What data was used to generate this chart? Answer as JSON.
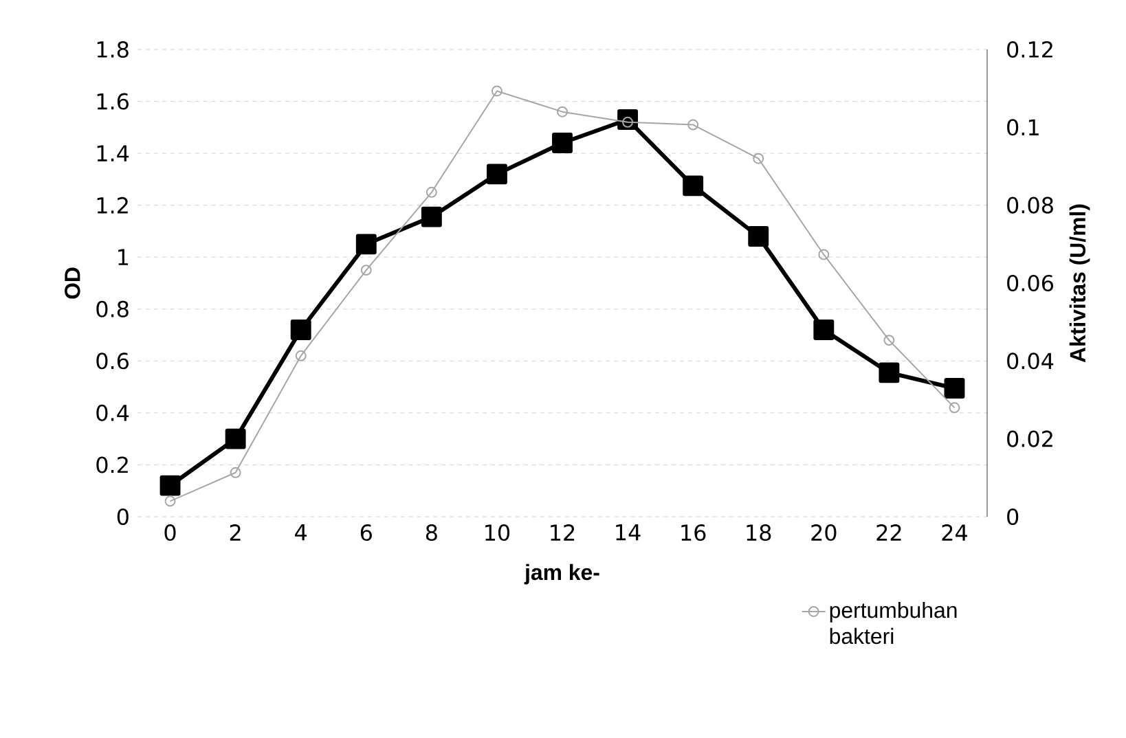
{
  "chart_data": {
    "type": "line",
    "xlabel": "jam ke-",
    "ylabel": "OD",
    "y2label": "Aktivitas (U/ml)",
    "categories": [
      "0",
      "2",
      "4",
      "6",
      "8",
      "10",
      "12",
      "14",
      "16",
      "18",
      "20",
      "22",
      "24"
    ],
    "series": [
      {
        "name": "pertumbuhan bakteri",
        "color": "#a6a6a6",
        "marker": "circle",
        "values": [
          0.06,
          0.17,
          0.62,
          0.95,
          1.25,
          1.64,
          1.56,
          1.52,
          1.51,
          1.38,
          1.01,
          0.68,
          0.42
        ]
      },
      {
        "color": "#000000",
        "marker": "square",
        "axis": "y2",
        "values": [
          0.008,
          0.02,
          0.048,
          0.07,
          0.077,
          0.088,
          0.096,
          0.102,
          0.085,
          0.072,
          0.048,
          0.037,
          0.033
        ]
      }
    ],
    "ylim": [
      0,
      1.8
    ],
    "yticks": [
      0,
      0.2,
      0.4,
      0.6,
      0.8,
      1,
      1.2,
      1.4,
      1.6,
      1.8
    ],
    "y2lim": [
      0,
      0.12
    ],
    "y2ticks": [
      0,
      0.02,
      0.04,
      0.06,
      0.08,
      0.1,
      0.12
    ],
    "grid": "y",
    "legend": "bottom right",
    "line_style": "solid"
  }
}
